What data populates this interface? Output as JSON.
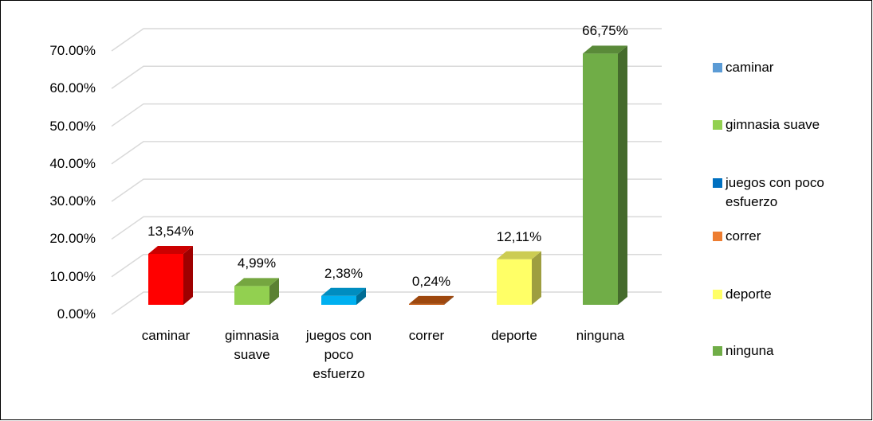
{
  "chart_data": {
    "type": "bar3d",
    "categories": [
      "caminar",
      "gimnasia suave",
      "juegos con poco esfuerzo",
      "correr",
      "deporte",
      "ninguna"
    ],
    "values": [
      13.54,
      4.99,
      2.38,
      0.24,
      12.11,
      66.75
    ],
    "value_labels": [
      "13,54%",
      "4,99%",
      "2,38%",
      "0,24%",
      "12,11%",
      "66,75%"
    ],
    "colors": [
      "#ff0000",
      "#92d050",
      "#00b0f0",
      "#c55a11",
      "#ffff66",
      "#70ad47"
    ],
    "legend_colors": [
      "#5b9bd5",
      "#92d050",
      "#0070c0",
      "#ed7d31",
      "#ffff66",
      "#70ad47"
    ],
    "ylim": [
      0,
      70
    ],
    "yticks": [
      {
        "value": 0,
        "label": "0.00%"
      },
      {
        "value": 10,
        "label": "10.00%"
      },
      {
        "value": 20,
        "label": "20.00%"
      },
      {
        "value": 30,
        "label": "30.00%"
      },
      {
        "value": 40,
        "label": "40.00%"
      },
      {
        "value": 50,
        "label": "50.00%"
      },
      {
        "value": 60,
        "label": "60.00%"
      },
      {
        "value": 70,
        "label": "70.00%"
      }
    ],
    "grid": true,
    "legend": "right"
  }
}
